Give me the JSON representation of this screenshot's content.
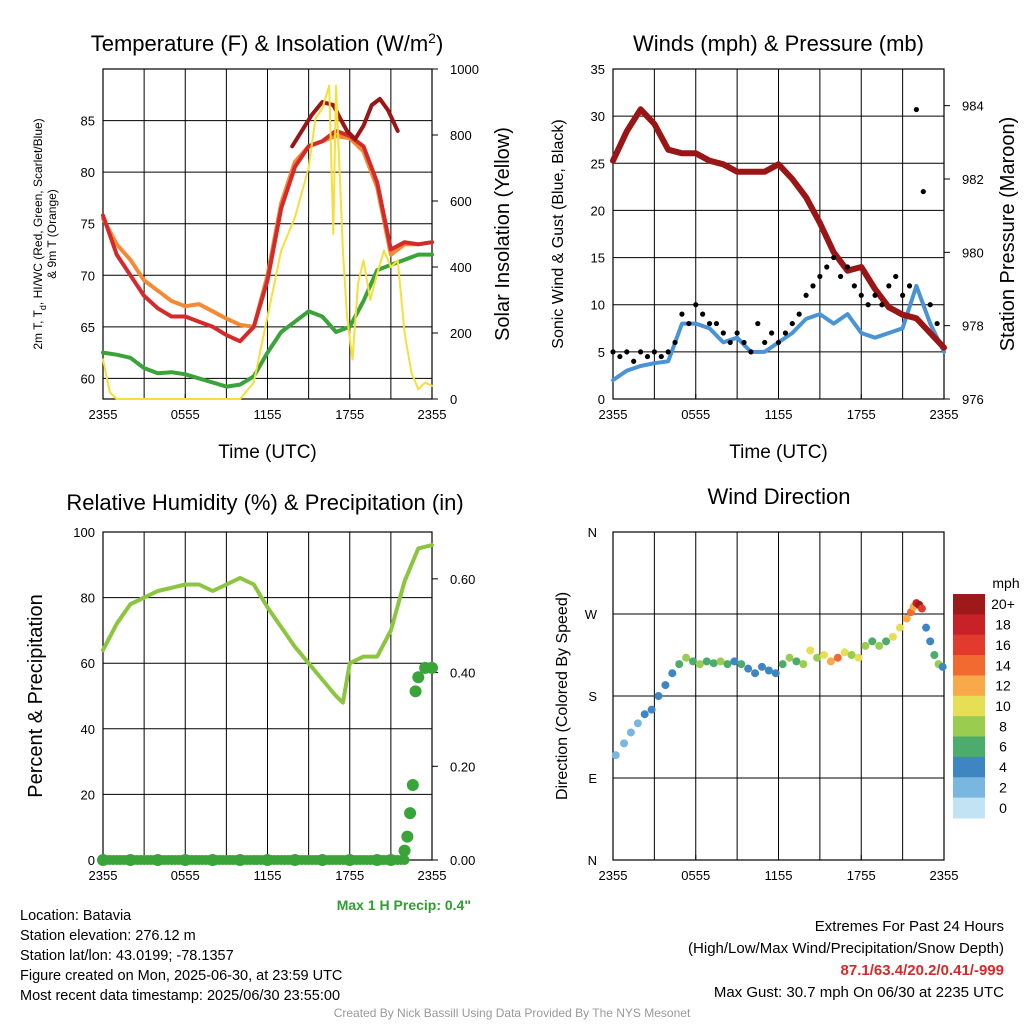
{
  "panels": {
    "temperature": {
      "title_main": "Temperature (F) & Insolation (W/m",
      "title_sup": "2",
      "title_end": ")",
      "ylabel_left_line1": "2m T, T",
      "ylabel_left_sub": "d",
      "ylabel_left_line1_end": ", HI/WC (Red, Green, Scarlet/Blue)",
      "ylabel_left_line2": "& 9m T (Orange)",
      "ylabel_right": "Solar Insolation (Yellow)",
      "xlabel": "Time (UTC)"
    },
    "winds": {
      "title": "Winds (mph) & Pressure (mb)",
      "ylabel_left": "Sonic Wind & Gust (Blue, Black)",
      "ylabel_right": "Station Pressure (Maroon)",
      "xlabel": "Time (UTC)"
    },
    "humidity": {
      "title": "Relative Humidity (%) & Precipitation (in)",
      "ylabel_left": "Percent & Precipitation",
      "annotation": "Max 1 H Precip: 0.4\""
    },
    "direction": {
      "title": "Wind Direction",
      "ylabel_left": "Direction (Colored By Speed)",
      "legend_title": "mph",
      "legend_labels": [
        "20+",
        "18",
        "16",
        "14",
        "12",
        "10",
        "8",
        "6",
        "4",
        "2",
        "0"
      ],
      "legend_colors": [
        "#9e1a1a",
        "#c82128",
        "#e23b2e",
        "#f26a30",
        "#f9a84a",
        "#e6df55",
        "#9acd4f",
        "#4cac6c",
        "#3e86c2",
        "#7ab7e0",
        "#c2e3f4"
      ]
    }
  },
  "info": {
    "location": "Location: Batavia",
    "elevation": "Station elevation: 276.12 m",
    "latlon": "Station lat/lon: 43.0199; -78.1357",
    "created": "Figure created on Mon, 2025-06-30, at 23:59 UTC",
    "recent": "Most recent data timestamp: 2025/06/30 23:55:00"
  },
  "extremes": {
    "title": "Extremes For Past 24 Hours",
    "subtitle": "(High/Low/Max Wind/Precipitation/Snow Depth)",
    "values": "87.1/63.4/20.2/0.41/-999",
    "gust": "Max Gust: 30.7 mph On 06/30 at 2235 UTC"
  },
  "credit": "Created By Nick Bassill Using Data Provided By The NYS Mesonet",
  "chart_data": [
    {
      "type": "line",
      "id": "temperature",
      "x_ticks": [
        "2355",
        "0555",
        "1155",
        "1755",
        "2355"
      ],
      "x_range_hours": [
        0,
        24
      ],
      "ylim_left": [
        58,
        90
      ],
      "yticks_left": [
        60,
        65,
        70,
        75,
        80,
        85
      ],
      "ylim_right": [
        0,
        1000
      ],
      "yticks_right": [
        0,
        200,
        400,
        600,
        800,
        1000
      ],
      "grid": true,
      "series": [
        {
          "color": "#f58a34",
          "axis": "left",
          "x": [
            0,
            1,
            2,
            3,
            4,
            5,
            6,
            7,
            8,
            9,
            10,
            11,
            12,
            13,
            14,
            15,
            16,
            17,
            18,
            19,
            20,
            21,
            22,
            23,
            24
          ],
          "values": [
            75.5,
            73.0,
            71.5,
            69.5,
            68.5,
            67.5,
            67.0,
            67.2,
            66.5,
            65.8,
            65.2,
            65.0,
            70.0,
            77.0,
            81.0,
            82.5,
            83.0,
            83.5,
            83.3,
            82.0,
            78.5,
            72.0,
            73.0,
            73.0,
            73.2
          ]
        },
        {
          "color": "#d42a2a",
          "axis": "left",
          "x": [
            0,
            1,
            2,
            3,
            4,
            5,
            6,
            7,
            8,
            9,
            10,
            11,
            12,
            13,
            14,
            15,
            16,
            17,
            18,
            19,
            20,
            21,
            22,
            23,
            24
          ],
          "values": [
            75.8,
            72.0,
            70.0,
            68.0,
            66.8,
            66.0,
            66.0,
            65.5,
            65.0,
            64.2,
            63.6,
            65.0,
            69.5,
            76.5,
            80.5,
            82.5,
            83.0,
            84.0,
            83.5,
            82.5,
            79.0,
            72.5,
            73.2,
            73.0,
            73.2
          ]
        },
        {
          "color": "#3aa43a",
          "axis": "left",
          "x": [
            0,
            1,
            2,
            3,
            4,
            5,
            6,
            7,
            8,
            9,
            10,
            11,
            12,
            13,
            14,
            15,
            16,
            17,
            18,
            19,
            20,
            21,
            22,
            23,
            24
          ],
          "values": [
            62.5,
            62.3,
            62.0,
            61.0,
            60.5,
            60.6,
            60.4,
            60.0,
            59.6,
            59.2,
            59.4,
            60.2,
            62.5,
            64.5,
            65.5,
            66.5,
            66.0,
            64.5,
            65.0,
            67.5,
            70.5,
            71.0,
            71.5,
            72.0,
            72.0
          ]
        },
        {
          "color": "#9a1515",
          "axis": "left",
          "x": [
            13.8,
            14.5,
            15.2,
            16.0,
            16.8,
            17.3,
            17.8,
            18.4,
            19.0,
            19.6,
            20.2,
            20.8,
            21.5
          ],
          "values": [
            82.5,
            84.0,
            85.5,
            86.8,
            86.5,
            85.2,
            84.0,
            83.2,
            84.5,
            86.5,
            87.1,
            86.0,
            84.0
          ]
        },
        {
          "color": "#f7df3a",
          "axis": "right",
          "x": [
            0,
            0.5,
            1.0,
            2,
            4,
            6,
            8,
            10,
            11,
            11.5,
            12,
            12.5,
            13,
            14,
            15,
            15.5,
            16,
            16.5,
            16.8,
            17,
            17.5,
            17.8,
            18.2,
            18.6,
            19,
            19.5,
            20,
            20.5,
            21,
            21.5,
            22,
            22.5,
            23,
            23.5,
            24
          ],
          "values": [
            120,
            20,
            0,
            0,
            0,
            0,
            0,
            0,
            50,
            150,
            250,
            350,
            450,
            550,
            700,
            850,
            880,
            950,
            500,
            950,
            450,
            250,
            120,
            350,
            420,
            300,
            380,
            450,
            400,
            420,
            200,
            80,
            30,
            50,
            40
          ]
        }
      ]
    },
    {
      "type": "line",
      "id": "winds",
      "x_ticks": [
        "2355",
        "0555",
        "1155",
        "1755",
        "2355"
      ],
      "x_range_hours": [
        0,
        24
      ],
      "ylim_left": [
        0,
        35
      ],
      "yticks_left": [
        0,
        5,
        10,
        15,
        20,
        25,
        30,
        35
      ],
      "ylim_right": [
        976,
        985
      ],
      "yticks_right": [
        976,
        978,
        980,
        982,
        984
      ],
      "grid": true,
      "series": [
        {
          "color": "#4a93d4",
          "axis": "left",
          "x": [
            0,
            1,
            2,
            3,
            4,
            5,
            6,
            7,
            8,
            9,
            10,
            11,
            12,
            13,
            14,
            15,
            16,
            17,
            18,
            19,
            20,
            21,
            22,
            23,
            24
          ],
          "values": [
            2.0,
            3.0,
            3.5,
            3.8,
            4.0,
            8.0,
            8.0,
            7.5,
            6.0,
            6.5,
            5.0,
            5.0,
            6.0,
            7.0,
            8.5,
            9.0,
            8.0,
            9.0,
            7.0,
            6.5,
            7.0,
            7.5,
            12.0,
            8.0,
            5.0
          ]
        },
        {
          "color": "#9a1515",
          "axis": "right",
          "x": [
            0,
            1,
            2,
            3,
            4,
            5,
            6,
            7,
            8,
            9,
            10,
            11,
            12,
            13,
            14,
            15,
            16,
            17,
            18,
            19,
            20,
            21,
            22,
            23,
            24
          ],
          "values": [
            982.5,
            983.3,
            983.9,
            983.5,
            982.8,
            982.7,
            982.7,
            982.5,
            982.4,
            982.2,
            982.2,
            982.2,
            982.4,
            982.0,
            981.5,
            980.8,
            980.0,
            979.5,
            979.6,
            979.0,
            978.5,
            978.3,
            978.2,
            977.8,
            977.4
          ]
        },
        {
          "color": "#000000",
          "axis": "left",
          "mode": "markers",
          "x": [
            0,
            0.5,
            1,
            1.5,
            2,
            2.5,
            3,
            3.5,
            4,
            4.5,
            5,
            5.5,
            6,
            6.5,
            7,
            7.5,
            8,
            8.5,
            9,
            9.5,
            10,
            10.5,
            11,
            11.5,
            12,
            12.5,
            13,
            13.5,
            14,
            14.5,
            15,
            15.5,
            16,
            16.5,
            17,
            17.5,
            18,
            18.5,
            19,
            19.5,
            20,
            20.5,
            21,
            21.5,
            22,
            22.5,
            23,
            23.5
          ],
          "values": [
            5,
            4.5,
            5,
            4,
            5,
            4.5,
            5,
            4.5,
            5,
            6,
            9,
            8,
            10,
            9,
            8,
            8,
            7,
            6,
            7,
            6,
            5,
            8,
            6,
            7,
            6,
            7,
            8,
            9,
            11,
            12,
            13,
            14,
            15,
            13,
            14,
            12,
            11,
            10,
            11,
            10,
            12,
            13,
            11,
            12,
            30.7,
            22,
            10,
            8
          ]
        }
      ]
    },
    {
      "type": "line",
      "id": "humidity",
      "x_ticks": [
        "2355",
        "0555",
        "1155",
        "1755",
        "2355"
      ],
      "x_range_hours": [
        0,
        24
      ],
      "ylim_left": [
        0,
        100
      ],
      "yticks_left": [
        0,
        20,
        40,
        60,
        80,
        100
      ],
      "ylim_right": [
        0,
        0.7
      ],
      "yticks_right": [
        0.0,
        0.2,
        0.4,
        0.6
      ],
      "grid": true,
      "series": [
        {
          "color": "#8cc63f",
          "axis": "left",
          "x": [
            0,
            1,
            2,
            3,
            4,
            5,
            6,
            7,
            8,
            9,
            10,
            11,
            12,
            13,
            14,
            15,
            16,
            17,
            17.5,
            18,
            19,
            20,
            21,
            22,
            23,
            24
          ],
          "values": [
            64,
            72,
            78,
            80,
            82,
            83,
            84,
            84,
            82,
            84,
            86,
            84,
            77,
            71,
            65,
            60,
            55,
            50,
            48,
            60,
            62,
            62,
            70,
            85,
            95,
            96
          ]
        },
        {
          "color": "#3aa43a",
          "axis": "right",
          "mode": "markers",
          "x": [
            0,
            2,
            4,
            6,
            8,
            10,
            12,
            14,
            16,
            18,
            20,
            21,
            22,
            22.2,
            22.4,
            22.6,
            22.8,
            23,
            23.5,
            24
          ],
          "values": [
            0,
            0,
            0,
            0,
            0,
            0,
            0,
            0,
            0,
            0,
            0,
            0,
            0.02,
            0.05,
            0.1,
            0.16,
            0.36,
            0.39,
            0.41,
            0.41
          ]
        }
      ]
    },
    {
      "type": "scatter",
      "id": "direction",
      "x_ticks": [
        "2355",
        "0555",
        "1155",
        "1755",
        "2355"
      ],
      "x_range_hours": [
        0,
        24
      ],
      "yticks": [
        "N",
        "E",
        "S",
        "W",
        "N"
      ],
      "ylim_degrees": [
        0,
        360
      ],
      "grid": true,
      "points": [
        {
          "x": 0.2,
          "dir": 115,
          "mph": 2
        },
        {
          "x": 0.8,
          "dir": 128,
          "mph": 1
        },
        {
          "x": 1.3,
          "dir": 140,
          "mph": 2
        },
        {
          "x": 1.8,
          "dir": 150,
          "mph": 2
        },
        {
          "x": 2.3,
          "dir": 160,
          "mph": 3
        },
        {
          "x": 2.8,
          "dir": 165,
          "mph": 3
        },
        {
          "x": 3.3,
          "dir": 180,
          "mph": 4
        },
        {
          "x": 3.8,
          "dir": 192,
          "mph": 3
        },
        {
          "x": 4.3,
          "dir": 205,
          "mph": 4
        },
        {
          "x": 4.8,
          "dir": 215,
          "mph": 6
        },
        {
          "x": 5.3,
          "dir": 222,
          "mph": 7
        },
        {
          "x": 5.8,
          "dir": 218,
          "mph": 6
        },
        {
          "x": 6.3,
          "dir": 215,
          "mph": 7
        },
        {
          "x": 6.8,
          "dir": 218,
          "mph": 6
        },
        {
          "x": 7.3,
          "dir": 216,
          "mph": 5
        },
        {
          "x": 7.8,
          "dir": 218,
          "mph": 7
        },
        {
          "x": 8.3,
          "dir": 215,
          "mph": 6
        },
        {
          "x": 8.8,
          "dir": 218,
          "mph": 4
        },
        {
          "x": 9.3,
          "dir": 215,
          "mph": 5
        },
        {
          "x": 9.8,
          "dir": 210,
          "mph": 4
        },
        {
          "x": 10.3,
          "dir": 205,
          "mph": 4
        },
        {
          "x": 10.8,
          "dir": 212,
          "mph": 4
        },
        {
          "x": 11.3,
          "dir": 208,
          "mph": 3
        },
        {
          "x": 11.8,
          "dir": 205,
          "mph": 4
        },
        {
          "x": 12.3,
          "dir": 215,
          "mph": 5
        },
        {
          "x": 12.8,
          "dir": 222,
          "mph": 7
        },
        {
          "x": 13.3,
          "dir": 218,
          "mph": 6
        },
        {
          "x": 13.8,
          "dir": 215,
          "mph": 8
        },
        {
          "x": 14.3,
          "dir": 230,
          "mph": 9
        },
        {
          "x": 14.8,
          "dir": 222,
          "mph": 8
        },
        {
          "x": 15.3,
          "dir": 225,
          "mph": 10
        },
        {
          "x": 15.8,
          "dir": 218,
          "mph": 11
        },
        {
          "x": 16.3,
          "dir": 222,
          "mph": 13
        },
        {
          "x": 16.8,
          "dir": 228,
          "mph": 9
        },
        {
          "x": 17.3,
          "dir": 225,
          "mph": 8
        },
        {
          "x": 17.8,
          "dir": 222,
          "mph": 10
        },
        {
          "x": 18.3,
          "dir": 235,
          "mph": 7
        },
        {
          "x": 18.8,
          "dir": 240,
          "mph": 6
        },
        {
          "x": 19.3,
          "dir": 235,
          "mph": 8
        },
        {
          "x": 19.8,
          "dir": 240,
          "mph": 6
        },
        {
          "x": 20.3,
          "dir": 245,
          "mph": 9
        },
        {
          "x": 20.8,
          "dir": 255,
          "mph": 10
        },
        {
          "x": 21.3,
          "dir": 265,
          "mph": 12
        },
        {
          "x": 21.6,
          "dir": 272,
          "mph": 14
        },
        {
          "x": 21.8,
          "dir": 278,
          "mph": 11
        },
        {
          "x": 22.0,
          "dir": 282,
          "mph": 18
        },
        {
          "x": 22.2,
          "dir": 280,
          "mph": 20
        },
        {
          "x": 22.4,
          "dir": 276,
          "mph": 16
        },
        {
          "x": 22.7,
          "dir": 255,
          "mph": 4
        },
        {
          "x": 23.0,
          "dir": 240,
          "mph": 4
        },
        {
          "x": 23.3,
          "dir": 225,
          "mph": 6
        },
        {
          "x": 23.6,
          "dir": 215,
          "mph": 7
        },
        {
          "x": 23.9,
          "dir": 212,
          "mph": 4
        }
      ]
    }
  ]
}
